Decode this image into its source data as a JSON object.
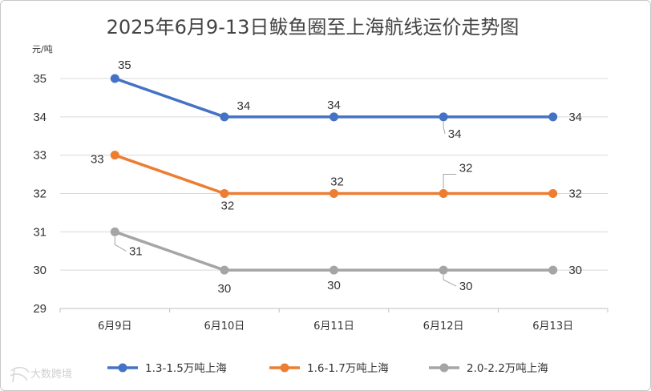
{
  "chart_data": {
    "type": "line",
    "title": "2025年6月9-13日鲅鱼圈至上海航线运价走势图",
    "ylabel": "元/吨",
    "xlabel": "",
    "categories": [
      "6月9日",
      "6月10日",
      "6月11日",
      "6月12日",
      "6月13日"
    ],
    "ylim": [
      29,
      35
    ],
    "yticks": [
      29,
      30,
      31,
      32,
      33,
      34,
      35
    ],
    "grid": true,
    "legend_position": "bottom",
    "series": [
      {
        "name": "1.3-1.5万吨上海",
        "color": "#4472c4",
        "values": [
          35,
          34,
          34,
          34,
          34
        ]
      },
      {
        "name": "1.6-1.7万吨上海",
        "color": "#ed7d31",
        "values": [
          33,
          32,
          32,
          32,
          32
        ]
      },
      {
        "name": "2.0-2.2万吨上海",
        "color": "#a5a5a5",
        "values": [
          31,
          30,
          30,
          30,
          30
        ]
      }
    ]
  },
  "watermark": {
    "text": "大数跨境"
  }
}
